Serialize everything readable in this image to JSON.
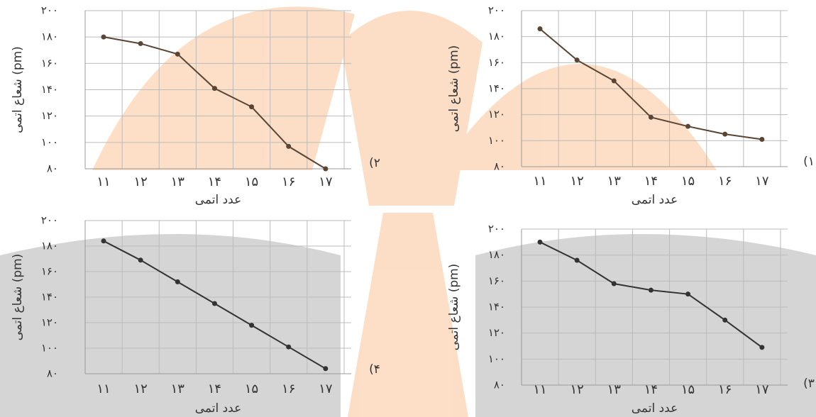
{
  "chart_data": [
    {
      "type": "line",
      "panel_label": "(۱",
      "xlabel": "عدد اتمی",
      "ylabel": "شعاع اتمی (pm)",
      "color": "#5a4535",
      "categories": [
        "۱۱",
        "۱۲",
        "۱۳",
        "۱۴",
        "۱۵",
        "۱۶",
        "۱۷"
      ],
      "values": [
        186,
        162,
        146,
        118,
        111,
        105,
        101
      ],
      "ylim": [
        80,
        200
      ],
      "yticks": [
        {
          "value": 80,
          "label": "۸۰"
        },
        {
          "value": 100,
          "label": "۱۰۰"
        },
        {
          "value": 120,
          "label": "۱۲۰"
        },
        {
          "value": 140,
          "label": "۱۴۰"
        },
        {
          "value": 160,
          "label": "۱۶۰"
        },
        {
          "value": 180,
          "label": "۱۸۰"
        },
        {
          "value": 200,
          "label": "۲۰۰"
        }
      ],
      "grid": true
    },
    {
      "type": "line",
      "panel_label": "(۲",
      "xlabel": "عدد اتمی",
      "ylabel": "شعاع اتمی (pm)",
      "color": "#5a4535",
      "categories": [
        "۱۱",
        "۱۲",
        "۱۳",
        "۱۴",
        "۱۵",
        "۱۶",
        "۱۷"
      ],
      "values": [
        180,
        175,
        167,
        141,
        127,
        97,
        80
      ],
      "ylim": [
        80,
        200
      ],
      "yticks": [
        {
          "value": 80,
          "label": "۸۰"
        },
        {
          "value": 100,
          "label": "۱۰۰"
        },
        {
          "value": 120,
          "label": "۱۲۰"
        },
        {
          "value": 140,
          "label": "۱۴۰"
        },
        {
          "value": 160,
          "label": "۱۶۰"
        },
        {
          "value": 180,
          "label": "۱۸۰"
        },
        {
          "value": 200,
          "label": "۲۰۰"
        }
      ],
      "grid": true
    },
    {
      "type": "line",
      "panel_label": "(۳",
      "xlabel": "عدد اتمی",
      "ylabel": "شعاع اتمی (pm)",
      "color": "#333333",
      "categories": [
        "۱۱",
        "۱۲",
        "۱۳",
        "۱۴",
        "۱۵",
        "۱۶",
        "۱۷"
      ],
      "values": [
        190,
        176,
        158,
        153,
        150,
        130,
        109
      ],
      "ylim": [
        80,
        200
      ],
      "yticks": [
        {
          "value": 80,
          "label": "۸۰"
        },
        {
          "value": 100,
          "label": "۱۰۰"
        },
        {
          "value": 120,
          "label": "۱۲۰"
        },
        {
          "value": 140,
          "label": "۱۴۰"
        },
        {
          "value": 160,
          "label": "۱۶۰"
        },
        {
          "value": 180,
          "label": "۱۸۰"
        },
        {
          "value": 200,
          "label": "۲۰۰"
        }
      ],
      "grid": true
    },
    {
      "type": "line",
      "panel_label": "(۴",
      "xlabel": "عدد اتمی",
      "ylabel": "شعاع اتمی (pm)",
      "color": "#333333",
      "categories": [
        "۱۱",
        "۱۲",
        "۱۳",
        "۱۴",
        "۱۵",
        "۱۶",
        "۱۷"
      ],
      "values": [
        184,
        169,
        152,
        135,
        118,
        101,
        84
      ],
      "ylim": [
        80,
        200
      ],
      "yticks": [
        {
          "value": 80,
          "label": "۸۰"
        },
        {
          "value": 100,
          "label": "۱۰۰"
        },
        {
          "value": 120,
          "label": "۱۲۰"
        },
        {
          "value": 140,
          "label": "۱۴۰"
        },
        {
          "value": 160,
          "label": "۱۶۰"
        },
        {
          "value": 180,
          "label": "۱۸۰"
        },
        {
          "value": 200,
          "label": "۲۰۰"
        }
      ],
      "grid": true
    }
  ]
}
